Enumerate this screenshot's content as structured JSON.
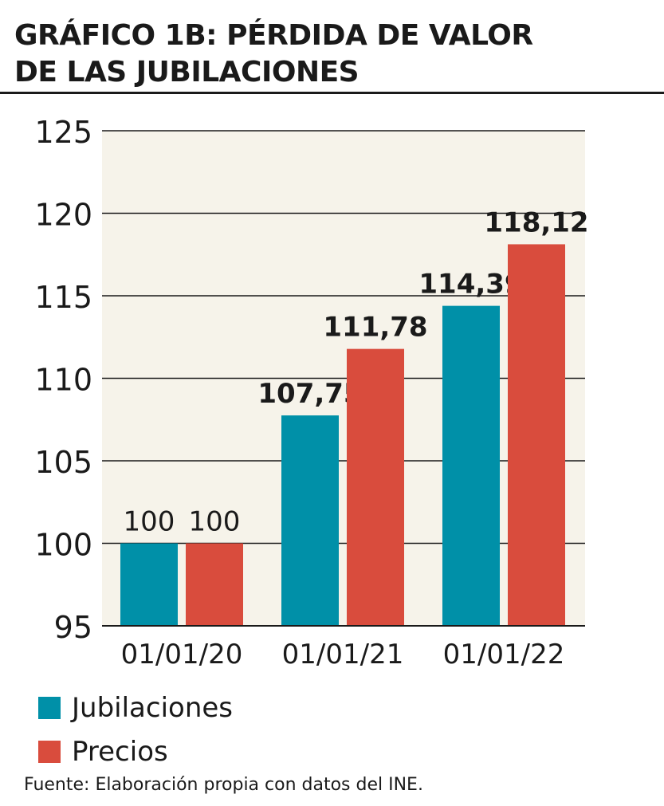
{
  "title_line1": "GRÁFICO 1B: PÉRDIDA DE VALOR",
  "title_line2": "DE LAS JUBILACIONES",
  "source": "Fuente: Elaboración propia con datos del INE.",
  "colors": {
    "jubilaciones": "#0090a8",
    "precios": "#d94c3d",
    "plot_bg": "#f6f3ea"
  },
  "chart_data": {
    "type": "bar",
    "categories": [
      "01/01/20",
      "01/01/21",
      "01/01/22"
    ],
    "series": [
      {
        "name": "Jubilaciones",
        "values": [
          100,
          107.75,
          114.39
        ],
        "labels": [
          "100",
          "107,75",
          "114,39"
        ]
      },
      {
        "name": "Precios",
        "values": [
          100,
          111.78,
          118.12
        ],
        "labels": [
          "100",
          "111,78",
          "118,12"
        ]
      }
    ],
    "y_ticks": [
      "95",
      "100",
      "105",
      "110",
      "115",
      "120",
      "125"
    ],
    "ylim": [
      95,
      125
    ],
    "grid": true,
    "legend_position": "bottom-left"
  }
}
